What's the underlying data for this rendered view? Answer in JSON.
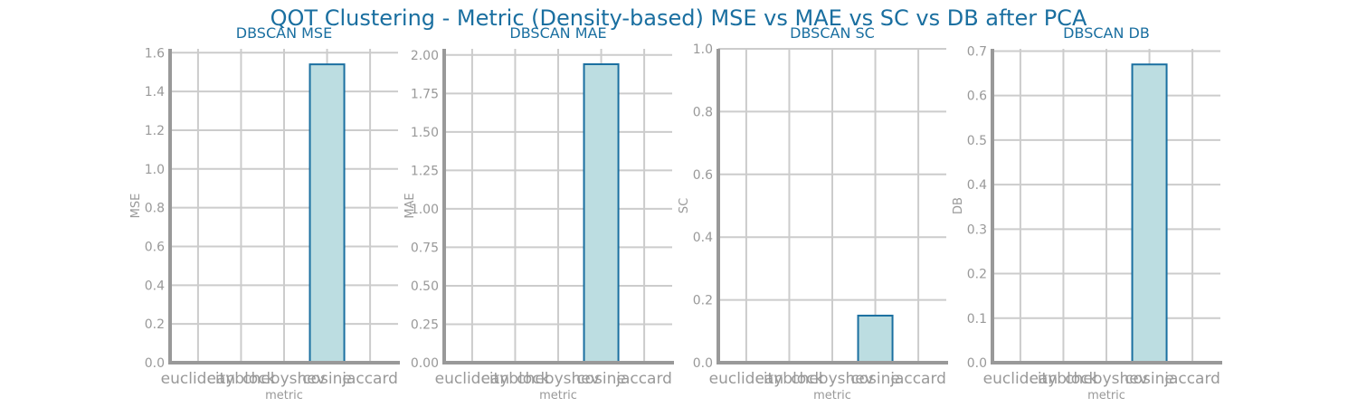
{
  "figure": {
    "suptitle": "QOT Clustering - Metric (Density-based) MSE vs MAE vs SC vs DB after PCA",
    "title_color": "#1a6fa0",
    "text_color": "#999999",
    "grid_color": "#cccccc",
    "spine_color": "#999999",
    "bar_fill": "#bcdde1",
    "bar_edge": "#1a6fa0"
  },
  "chart_data": [
    {
      "type": "bar",
      "title": "DBSCAN MSE",
      "xlabel": "metric",
      "ylabel": "MSE",
      "categories": [
        "euclidean",
        "cityblock",
        "chebyshev",
        "cosine",
        "jaccard"
      ],
      "values": [
        0,
        0,
        0,
        1.54,
        0
      ],
      "ylim": [
        0,
        1.62
      ],
      "yticks": [
        0.0,
        0.2,
        0.4,
        0.6,
        0.8,
        1.0,
        1.2,
        1.4,
        1.6
      ],
      "ytick_labels": [
        "0.0",
        "0.2",
        "0.4",
        "0.6",
        "0.8",
        "1.0",
        "1.2",
        "1.4",
        "1.6"
      ],
      "grid": true
    },
    {
      "type": "bar",
      "title": "DBSCAN MAE",
      "xlabel": "metric",
      "ylabel": "MAE",
      "categories": [
        "euclidean",
        "cityblock",
        "chebyshev",
        "cosine",
        "jaccard"
      ],
      "values": [
        0,
        0,
        0,
        1.94,
        0
      ],
      "ylim": [
        0,
        2.04
      ],
      "yticks": [
        0.0,
        0.25,
        0.5,
        0.75,
        1.0,
        1.25,
        1.5,
        1.75,
        2.0
      ],
      "ytick_labels": [
        "0.00",
        "0.25",
        "0.50",
        "0.75",
        "1.00",
        "1.25",
        "1.50",
        "1.75",
        "2.00"
      ],
      "grid": true
    },
    {
      "type": "bar",
      "title": "DBSCAN SC",
      "xlabel": "metric",
      "ylabel": "SC",
      "categories": [
        "euclidean",
        "cityblock",
        "chebyshev",
        "cosine",
        "jaccard"
      ],
      "values": [
        0,
        0,
        0,
        0.15,
        0
      ],
      "ylim": [
        0,
        1.0
      ],
      "yticks": [
        0.0,
        0.2,
        0.4,
        0.6,
        0.8,
        1.0
      ],
      "ytick_labels": [
        "0.0",
        "0.2",
        "0.4",
        "0.6",
        "0.8",
        "1.0"
      ],
      "grid": true
    },
    {
      "type": "bar",
      "title": "DBSCAN DB",
      "xlabel": "metric",
      "ylabel": "DB",
      "categories": [
        "euclidean",
        "cityblock",
        "chebyshev",
        "cosine",
        "jaccard"
      ],
      "values": [
        0,
        0,
        0,
        0.67,
        0
      ],
      "ylim": [
        0,
        0.705
      ],
      "yticks": [
        0.0,
        0.1,
        0.2,
        0.3,
        0.4,
        0.5,
        0.6,
        0.7
      ],
      "ytick_labels": [
        "0.0",
        "0.1",
        "0.2",
        "0.3",
        "0.4",
        "0.5",
        "0.6",
        "0.7"
      ],
      "grid": true
    }
  ]
}
